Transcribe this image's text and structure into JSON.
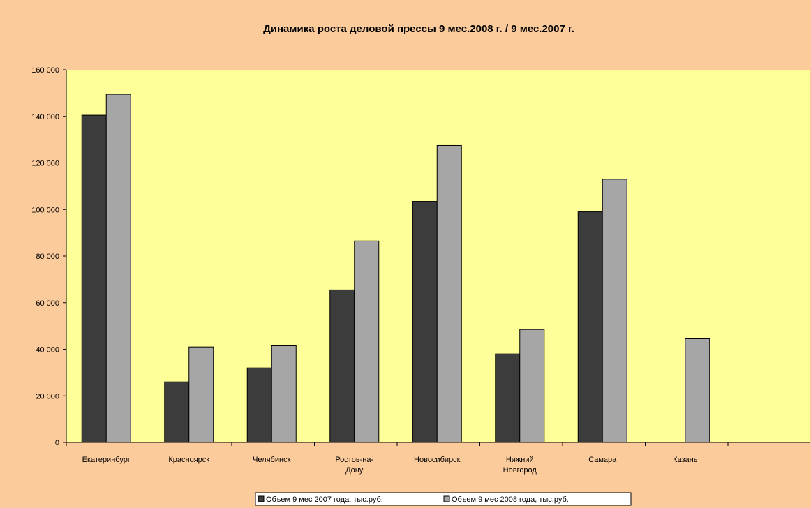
{
  "chart_data": {
    "type": "bar",
    "title": "Динамика роста деловой прессы 9 мес.2008 г. / 9 мес.2007 г.",
    "categories": [
      "Екатеринбург",
      "Красноярск",
      "Челябинск",
      "Ростов-на-Дону",
      "Новосибирск",
      "Нижний Новгород",
      "Самара",
      "Казань"
    ],
    "category_labels": [
      [
        "Екатеринбург"
      ],
      [
        "Красноярск"
      ],
      [
        "Челябинск"
      ],
      [
        "Ростов-на-",
        "Дону"
      ],
      [
        "Новосибирск"
      ],
      [
        "Нижний",
        "Новгород"
      ],
      [
        "Самара"
      ],
      [
        "Казань"
      ]
    ],
    "series": [
      {
        "name": "Объем 9 мес 2007 года, тыс.руб.",
        "values": [
          140500,
          26000,
          32000,
          65500,
          103500,
          38000,
          99000,
          null
        ],
        "color": "#3c3c3c"
      },
      {
        "name": "Объем 9 мес 2008 года, тыс.руб.",
        "values": [
          149500,
          41000,
          41500,
          86500,
          127500,
          48500,
          113000,
          44500
        ],
        "color": "#a6a6a6"
      }
    ],
    "ylim": [
      0,
      160000
    ],
    "yticks": [
      0,
      20000,
      40000,
      60000,
      80000,
      100000,
      120000,
      140000,
      160000
    ],
    "ytick_labels": [
      "0",
      "20 000",
      "40 000",
      "60 000",
      "80 000",
      "100 000",
      "120 000",
      "140 000",
      "160 000"
    ],
    "xlabel": "",
    "ylabel": "",
    "grid": false,
    "legend_position": "bottom",
    "plot_background": "#ffff99",
    "chart_background": "#fbcb9c"
  }
}
